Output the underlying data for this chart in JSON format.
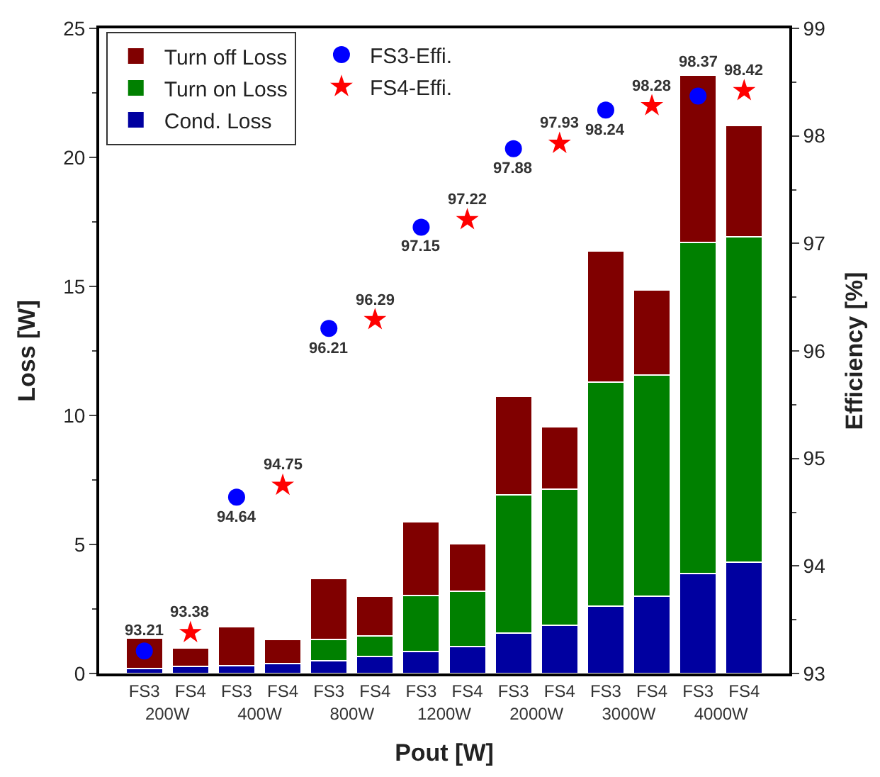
{
  "chart_data": {
    "type": "bar",
    "stacked": true,
    "xlabel": "Pout [W]",
    "ylabel": "Loss [W]",
    "y2label": "Efficiency [%]",
    "categories": [
      "FS3",
      "FS4",
      "FS3",
      "FS4",
      "FS3",
      "FS4",
      "FS3",
      "FS4",
      "FS3",
      "FS4",
      "FS3",
      "FS4",
      "FS3",
      "FS4"
    ],
    "annotations": [
      "200W",
      "400W",
      "800W",
      "1200W",
      "2000W",
      "3000W",
      "4000W"
    ],
    "series": [
      {
        "name": "Cond. Loss",
        "color": "#0000a0",
        "values": [
          0.2,
          0.27,
          0.3,
          0.38,
          0.5,
          0.66,
          0.84,
          1.05,
          1.57,
          1.87,
          2.6,
          3.0,
          3.88,
          4.3
        ]
      },
      {
        "name": "Turn on Loss",
        "color": "#008000",
        "values": [
          null,
          null,
          null,
          null,
          0.83,
          0.81,
          2.18,
          2.15,
          5.35,
          5.28,
          8.7,
          8.57,
          12.82,
          12.62
        ]
      },
      {
        "name": "Turn off Loss",
        "color": "#800000",
        "values": [
          1.17,
          0.72,
          1.5,
          0.95,
          2.34,
          1.52,
          2.86,
          1.83,
          3.83,
          2.41,
          5.08,
          3.28,
          6.5,
          4.31
        ]
      },
      {
        "name": "FS3-Effi.",
        "type": "scatter",
        "axis": "y2",
        "marker": "circle",
        "color": "#0000ff",
        "values": [
          93.21,
          null,
          94.64,
          null,
          96.21,
          null,
          97.15,
          null,
          97.88,
          null,
          98.24,
          null,
          98.37,
          null
        ],
        "value_labels": [
          "93.21",
          null,
          "94.64",
          null,
          "96.21",
          null,
          "97.15",
          null,
          "97.88",
          null,
          "98.24",
          null,
          "98.37",
          null
        ]
      },
      {
        "name": "FS4-Effi.",
        "type": "scatter",
        "axis": "y2",
        "marker": "star",
        "color": "#ff0000",
        "values": [
          null,
          93.38,
          null,
          94.75,
          null,
          96.29,
          null,
          97.22,
          null,
          97.93,
          null,
          98.28,
          null,
          98.42
        ],
        "value_labels": [
          null,
          "93.38",
          null,
          "94.75",
          null,
          "96.29",
          null,
          "97.22",
          null,
          "97.93",
          null,
          "98.28",
          null,
          "98.42"
        ]
      }
    ],
    "ylim": [
      0,
      25
    ],
    "yticks": [
      0,
      5,
      10,
      15,
      20,
      25
    ],
    "y2lim": [
      93,
      99
    ],
    "y2ticks": [
      93,
      94,
      95,
      96,
      97,
      98,
      99
    ],
    "legend": "top left"
  }
}
